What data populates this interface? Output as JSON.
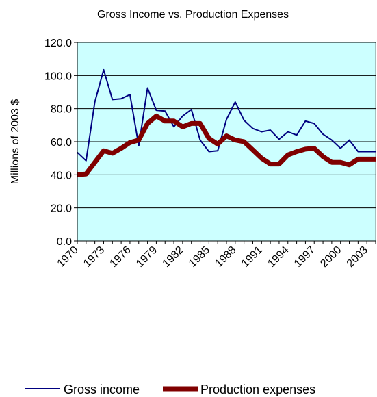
{
  "chart_data": {
    "type": "line",
    "title": "Gross Income vs. Production Expenses",
    "xlabel": "",
    "ylabel": "Millions of 2003 $",
    "ylim": [
      0,
      120
    ],
    "yticks": [
      "0.0",
      "20.0",
      "40.0",
      "60.0",
      "80.0",
      "100.0",
      "120.0"
    ],
    "x": [
      1970,
      1971,
      1972,
      1973,
      1974,
      1975,
      1976,
      1977,
      1978,
      1979,
      1980,
      1981,
      1982,
      1983,
      1984,
      1985,
      1986,
      1987,
      1988,
      1989,
      1990,
      1991,
      1992,
      1993,
      1994,
      1995,
      1996,
      1997,
      1998,
      1999,
      2000,
      2001,
      2002,
      2003,
      2004
    ],
    "xticks": [
      "1970",
      "1973",
      "1976",
      "1979",
      "1982",
      "1985",
      "1988",
      "1991",
      "1994",
      "1997",
      "2000",
      "2003"
    ],
    "plot_background": "#ccffff",
    "grid": true,
    "legend_position": "bottom",
    "series": [
      {
        "name": "Gross income",
        "color": "#000080",
        "width": "thin",
        "values": [
          53.5,
          48.5,
          84.0,
          103.5,
          85.5,
          86.0,
          88.5,
          57.5,
          92.5,
          79.0,
          78.5,
          69.0,
          75.5,
          79.5,
          61.0,
          54.0,
          54.5,
          73.5,
          84.0,
          73.0,
          68.0,
          66.0,
          67.0,
          61.5,
          66.0,
          64.0,
          72.5,
          71.0,
          64.5,
          61.0,
          56.0,
          61.0,
          54.0,
          54.0,
          54.0
        ]
      },
      {
        "name": "Production expenses",
        "color": "#800000",
        "width": "thick",
        "values": [
          40.0,
          40.5,
          47.5,
          54.5,
          53.0,
          56.0,
          59.5,
          61.0,
          71.0,
          75.5,
          72.5,
          72.5,
          69.0,
          71.0,
          71.0,
          62.0,
          58.5,
          63.5,
          61.0,
          60.0,
          55.0,
          50.0,
          46.5,
          46.5,
          52.0,
          54.0,
          55.5,
          56.0,
          51.0,
          47.5,
          47.5,
          46.0,
          49.5,
          49.5,
          49.5
        ]
      }
    ]
  }
}
